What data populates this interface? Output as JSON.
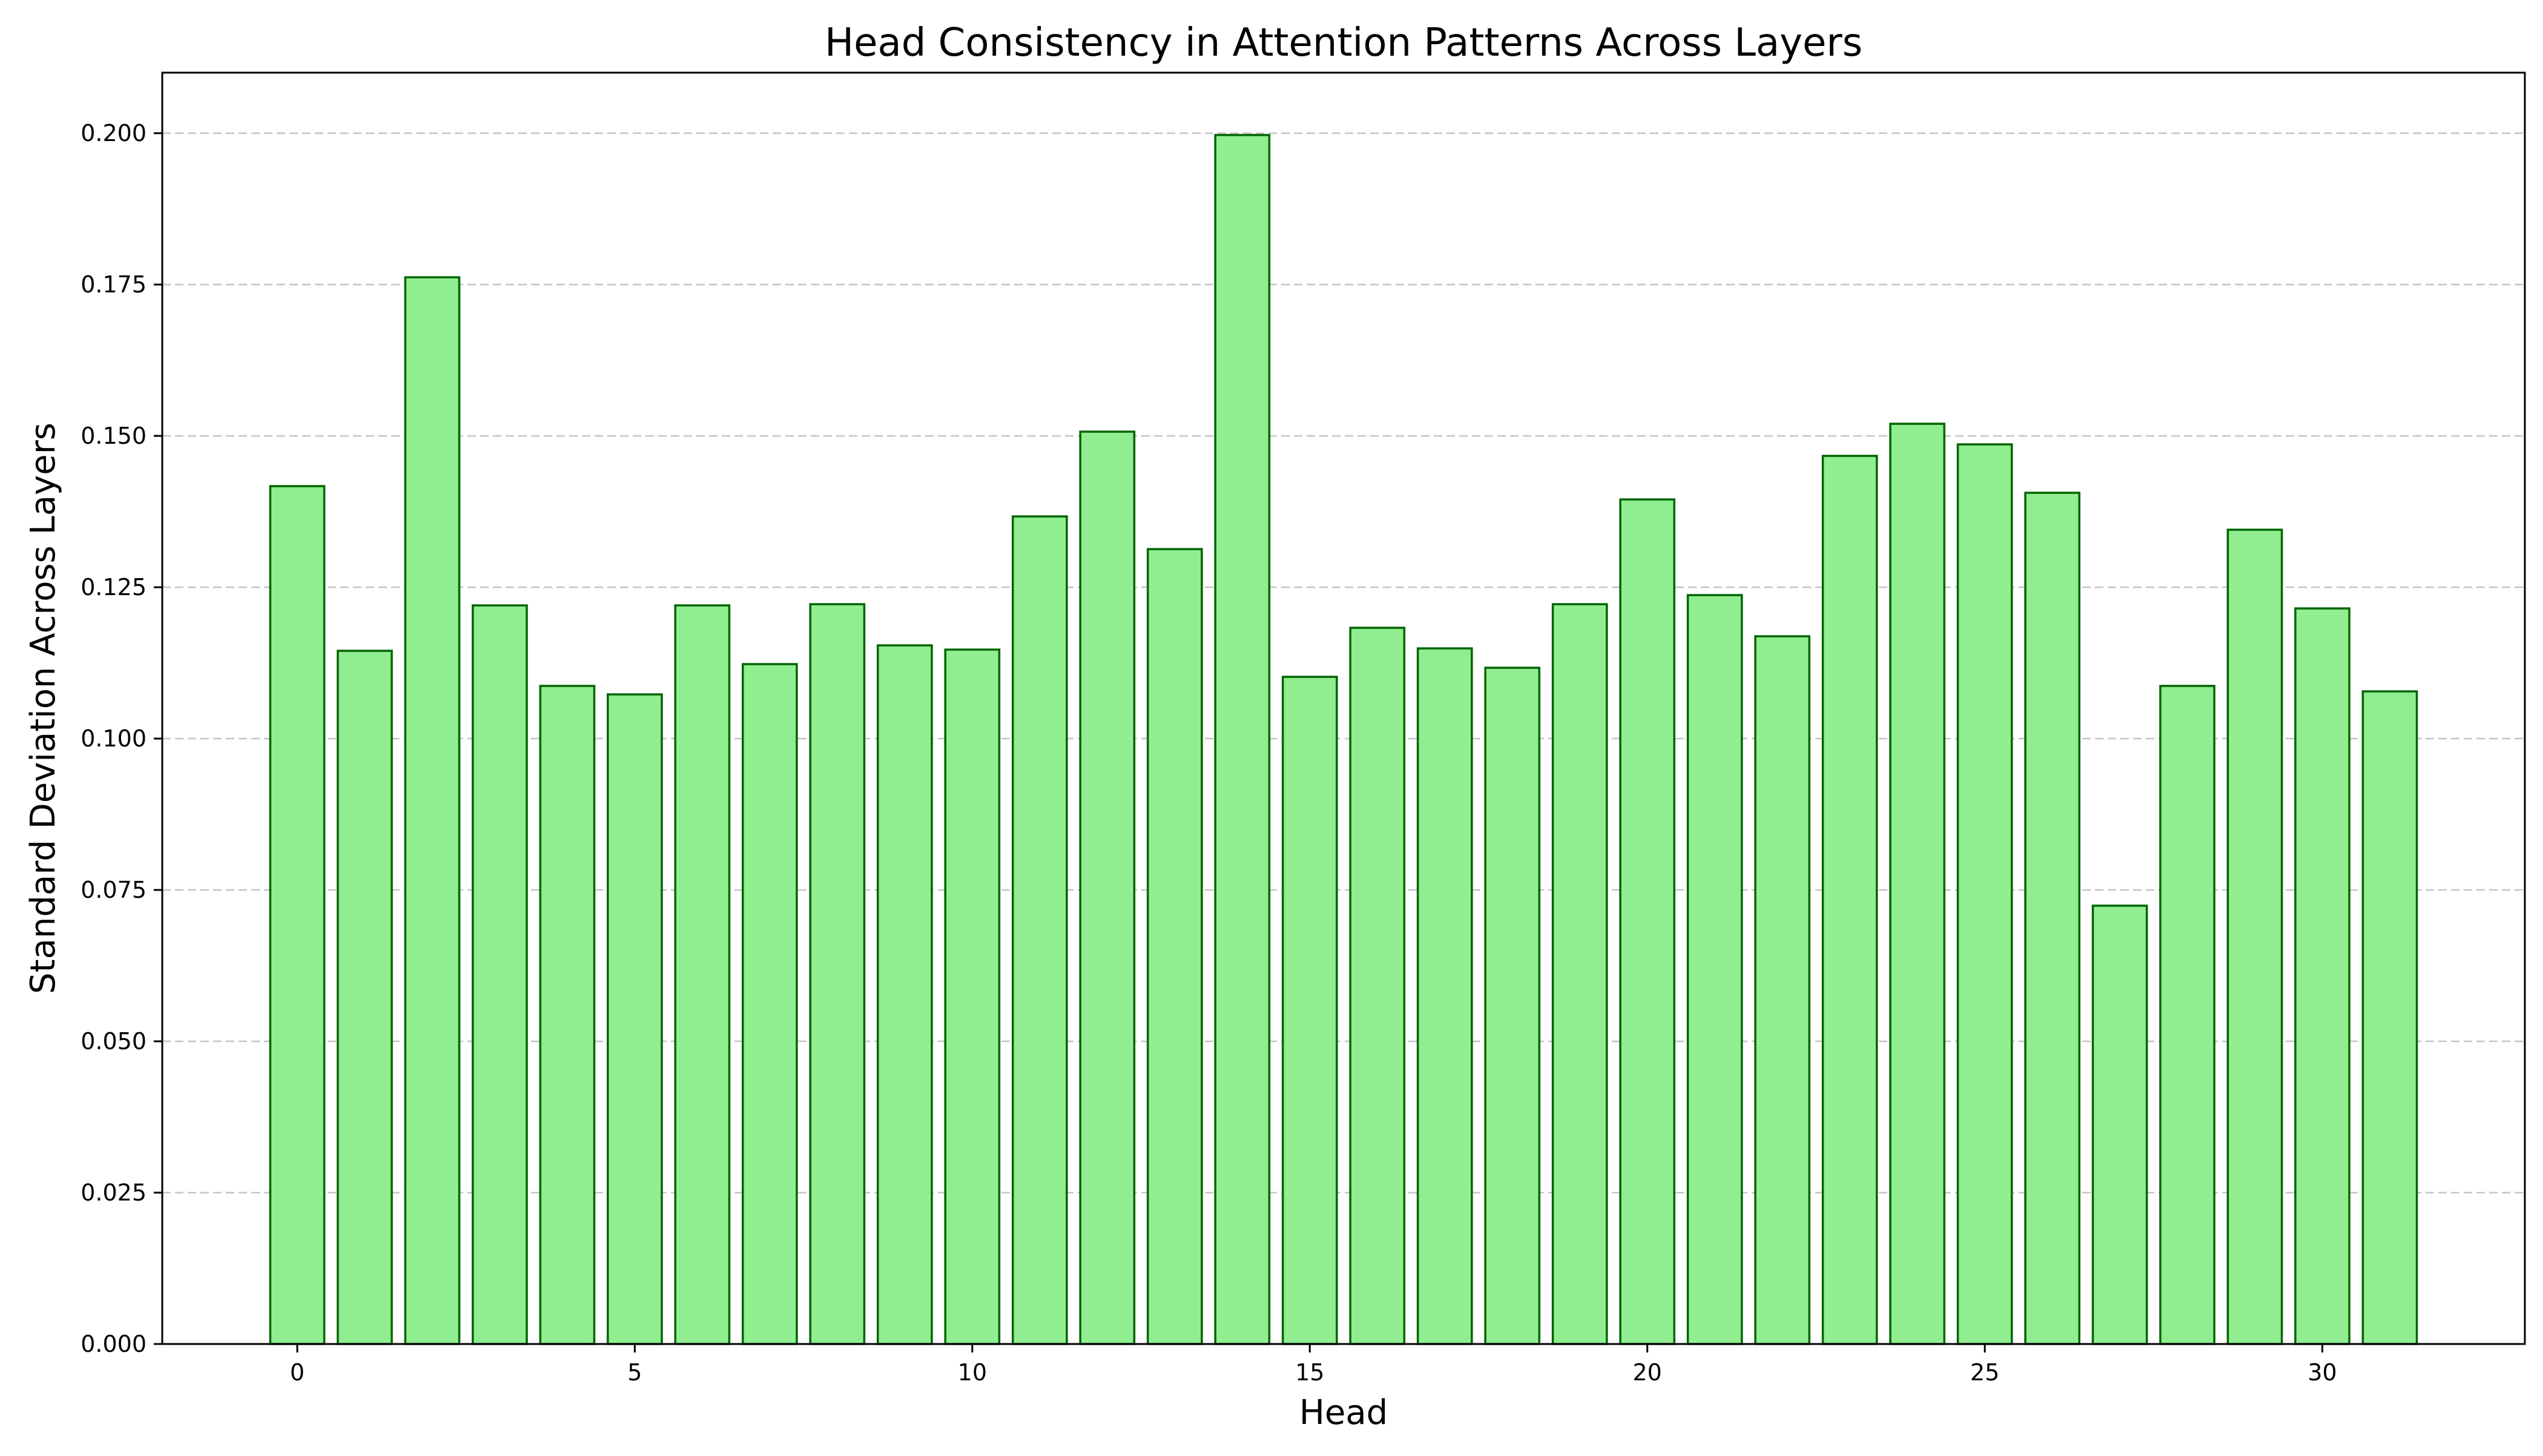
{
  "chart_data": {
    "type": "bar",
    "title": "Head Consistency in Attention Patterns Across Layers",
    "xlabel": "Head",
    "ylabel": "Standard Deviation Across Layers",
    "categories": [
      0,
      1,
      2,
      3,
      4,
      5,
      6,
      7,
      8,
      9,
      10,
      11,
      12,
      13,
      14,
      15,
      16,
      17,
      18,
      19,
      20,
      21,
      22,
      23,
      24,
      25,
      26,
      27,
      28,
      29,
      30,
      31
    ],
    "values": [
      0.1417,
      0.1145,
      0.1762,
      0.122,
      0.1087,
      0.1073,
      0.122,
      0.1123,
      0.1222,
      0.1154,
      0.1147,
      0.1367,
      0.1507,
      0.1313,
      0.1997,
      0.1102,
      0.1183,
      0.1149,
      0.1117,
      0.1222,
      0.1395,
      0.1237,
      0.1169,
      0.1467,
      0.152,
      0.1486,
      0.1406,
      0.0724,
      0.1087,
      0.1345,
      0.1215,
      0.1078
    ],
    "xlim": [
      -2,
      33
    ],
    "ylim": [
      0,
      0.21
    ],
    "xticks": [
      "0",
      "5",
      "10",
      "15",
      "20",
      "25",
      "30"
    ],
    "yticks": [
      "0.000",
      "0.025",
      "0.050",
      "0.075",
      "0.100",
      "0.125",
      "0.150",
      "0.175",
      "0.200"
    ],
    "grid": "y-dashed",
    "colors": {
      "bar_fill": "#90ee90",
      "bar_edge": "#006400",
      "grid": "#c4c4c4"
    }
  }
}
